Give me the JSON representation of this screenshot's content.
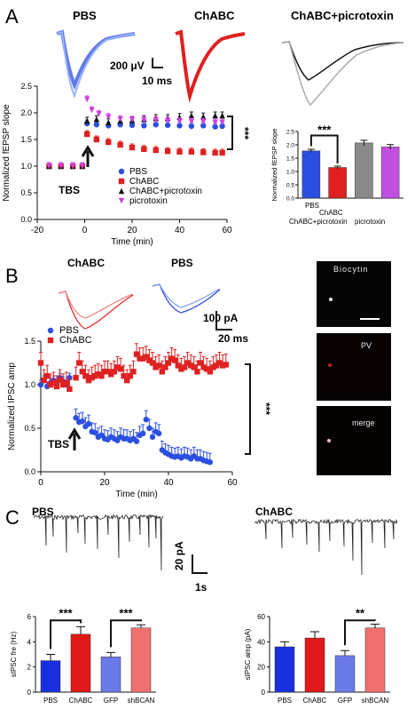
{
  "panels": {
    "A": "A",
    "B": "B",
    "C": "C"
  },
  "panelA": {
    "trace_labels": [
      "PBS",
      "ChABC",
      "ChABC+picrotoxin"
    ],
    "scale_v": "200 μV",
    "scale_t": "10 ms",
    "tbs": "TBS",
    "sig": "***",
    "colors": {
      "PBS": "#2b4fe0",
      "ChABC": "#e02020",
      "ChABC+picrotoxin": "#111111",
      "picrotoxin": "#d040e0"
    }
  },
  "panelB": {
    "trace_labels": [
      "ChABC",
      "PBS"
    ],
    "scale_a": "100 pA",
    "scale_t": "20 ms",
    "tbs": "TBS",
    "sig": "***",
    "image_labels": [
      "Biocytin",
      "PV",
      "merge"
    ]
  },
  "panelC": {
    "trace_labels": [
      "PBS",
      "ChABC"
    ],
    "scale_a": "20 pA",
    "scale_t": "1s"
  },
  "chart_data": [
    {
      "type": "line",
      "panel": "A",
      "xlabel": "Time (min)",
      "ylabel": "Normalized fEPSP slope",
      "xlim": [
        -20,
        60
      ],
      "ylim": [
        0,
        2.5
      ],
      "xticks": [
        -20,
        0,
        20,
        40,
        60
      ],
      "yticks": [
        0.0,
        0.5,
        1.0,
        1.5,
        2.0,
        2.5
      ],
      "legend": "bottom-center",
      "series": [
        {
          "name": "PBS",
          "marker": "circle",
          "color": "#2b4fe0",
          "x": [
            -15,
            -10,
            -5,
            -1,
            1,
            5,
            10,
            15,
            20,
            25,
            30,
            35,
            40,
            45,
            50,
            55,
            58
          ],
          "y": [
            1.0,
            1.0,
            1.0,
            1.0,
            1.8,
            1.78,
            1.76,
            1.78,
            1.77,
            1.76,
            1.78,
            1.77,
            1.76,
            1.75,
            1.76,
            1.74,
            1.75
          ]
        },
        {
          "name": "ChABC",
          "marker": "square",
          "color": "#e02020",
          "x": [
            -15,
            -10,
            -5,
            -1,
            1,
            5,
            10,
            15,
            20,
            25,
            30,
            35,
            40,
            45,
            50,
            55,
            58
          ],
          "y": [
            1.0,
            1.0,
            1.0,
            1.0,
            1.6,
            1.5,
            1.45,
            1.4,
            1.35,
            1.32,
            1.3,
            1.28,
            1.27,
            1.27,
            1.26,
            1.25,
            1.25
          ]
        },
        {
          "name": "ChABC+picrotoxin",
          "marker": "triangle",
          "color": "#111111",
          "x": [
            -15,
            -10,
            -5,
            -1,
            1,
            5,
            10,
            15,
            20,
            25,
            30,
            35,
            40,
            45,
            50,
            55,
            58
          ],
          "y": [
            1.0,
            1.0,
            1.0,
            1.0,
            1.85,
            1.88,
            1.82,
            1.85,
            1.86,
            1.88,
            1.9,
            1.9,
            1.92,
            1.95,
            1.93,
            1.95,
            1.95
          ]
        },
        {
          "name": "picrotoxin",
          "marker": "triangle-down",
          "color": "#d040e0",
          "x": [
            -15,
            -10,
            -5,
            -1,
            1,
            3,
            6,
            10,
            15,
            20,
            25,
            30,
            35,
            40,
            45,
            50,
            55,
            58
          ],
          "y": [
            1.0,
            1.0,
            1.0,
            1.0,
            2.25,
            2.05,
            1.98,
            1.92,
            1.88,
            1.87,
            1.86,
            1.86,
            1.85,
            1.84,
            1.83,
            1.83,
            1.82,
            1.82
          ]
        }
      ]
    },
    {
      "type": "bar",
      "panel": "A-inset",
      "ylabel": "Normalized fEPSP slope",
      "ylim": [
        0,
        2.5
      ],
      "yticks": [
        0.0,
        0.5,
        1.0,
        1.5,
        2.0,
        2.5
      ],
      "categories": [
        "PBS",
        "ChABC",
        "ChABC+picrotoxin",
        "picrotoxin"
      ],
      "values": [
        1.77,
        1.15,
        2.07,
        1.92
      ],
      "errors": [
        0.06,
        0.05,
        0.1,
        0.09
      ],
      "colors": [
        "#2b4fe0",
        "#e02020",
        "#8a8a8a",
        "#c050e0"
      ],
      "significance": [
        {
          "from": 0,
          "to": 1,
          "label": "***"
        }
      ]
    },
    {
      "type": "line",
      "panel": "B",
      "xlabel": "Time (min)",
      "ylabel": "Normalized IPSC amp",
      "xlim": [
        0,
        60
      ],
      "ylim": [
        0,
        1.5
      ],
      "xticks": [
        0,
        20,
        40,
        60
      ],
      "yticks": [
        0.0,
        0.5,
        1.0,
        1.5
      ],
      "legend": "top-left",
      "series": [
        {
          "name": "PBS",
          "marker": "circle",
          "color": "#2b4fe0",
          "x": [
            0,
            1,
            2,
            3,
            4,
            5,
            6,
            7,
            8,
            9,
            11,
            12,
            13,
            14,
            15,
            16,
            17,
            18,
            19,
            20,
            21,
            22,
            23,
            24,
            25,
            26,
            27,
            28,
            29,
            30,
            31,
            32,
            33,
            34,
            35,
            36,
            37,
            38,
            39,
            40,
            41,
            42,
            43,
            44,
            45,
            46,
            47,
            48,
            49,
            50,
            51,
            52,
            53
          ],
          "y": [
            1.0,
            1.05,
            0.98,
            1.02,
            1.05,
            1.0,
            1.08,
            1.04,
            1.0,
            1.08,
            0.62,
            0.57,
            0.58,
            0.52,
            0.55,
            0.46,
            0.45,
            0.4,
            0.42,
            0.38,
            0.37,
            0.4,
            0.38,
            0.36,
            0.4,
            0.38,
            0.38,
            0.36,
            0.38,
            0.35,
            0.42,
            0.44,
            0.6,
            0.5,
            0.4,
            0.46,
            0.44,
            0.25,
            0.22,
            0.2,
            0.18,
            0.17,
            0.18,
            0.16,
            0.18,
            0.17,
            0.15,
            0.18,
            0.15,
            0.15,
            0.13,
            0.12,
            0.11
          ]
        },
        {
          "name": "ChABC",
          "marker": "square",
          "color": "#e02020",
          "x": [
            0,
            1,
            2,
            3,
            4,
            5,
            6,
            7,
            8,
            9,
            11,
            12,
            13,
            14,
            15,
            16,
            17,
            18,
            19,
            20,
            21,
            22,
            23,
            24,
            25,
            26,
            27,
            28,
            29,
            30,
            31,
            32,
            33,
            34,
            35,
            36,
            37,
            38,
            39,
            40,
            41,
            42,
            43,
            44,
            45,
            46,
            47,
            48,
            49,
            50,
            51,
            52,
            53,
            54,
            55,
            56,
            57,
            58
          ],
          "y": [
            1.25,
            1.05,
            1.1,
            1.0,
            1.02,
            0.98,
            1.05,
            1.0,
            1.02,
            0.95,
            1.08,
            1.25,
            1.15,
            1.1,
            1.05,
            1.08,
            1.1,
            1.12,
            1.1,
            1.15,
            1.15,
            1.12,
            1.15,
            1.2,
            1.18,
            1.1,
            1.05,
            1.1,
            1.15,
            1.35,
            1.3,
            1.3,
            1.32,
            1.28,
            1.25,
            1.2,
            1.22,
            1.15,
            1.2,
            1.25,
            1.3,
            1.28,
            1.22,
            1.18,
            1.2,
            1.25,
            1.22,
            1.2,
            1.15,
            1.25,
            1.2,
            1.18,
            1.15,
            1.2,
            1.22,
            1.25,
            1.22,
            1.23
          ]
        }
      ]
    },
    {
      "type": "bar",
      "panel": "C-left",
      "ylabel": "sIPSC fre (Hz)",
      "ylim": [
        0,
        6
      ],
      "yticks": [
        0,
        2,
        4,
        6
      ],
      "categories": [
        "PBS",
        "ChABC",
        "GFP",
        "shBCAN"
      ],
      "values": [
        2.5,
        4.6,
        2.8,
        5.1
      ],
      "errors": [
        0.5,
        0.6,
        0.35,
        0.25
      ],
      "colors": [
        "#1a2fe0",
        "#e01818",
        "#6a7ae8",
        "#f07070"
      ],
      "significance": [
        {
          "from": 0,
          "to": 1,
          "label": "***"
        },
        {
          "from": 2,
          "to": 3,
          "label": "***"
        }
      ]
    },
    {
      "type": "bar",
      "panel": "C-right",
      "ylabel": "sIPSC amp (pA)",
      "ylim": [
        0,
        60
      ],
      "yticks": [
        0,
        20,
        40,
        60
      ],
      "categories": [
        "PBS",
        "ChABC",
        "GFP",
        "shBCAN"
      ],
      "values": [
        36,
        43,
        29,
        51
      ],
      "errors": [
        4,
        5,
        4,
        3
      ],
      "colors": [
        "#1a2fe0",
        "#e01818",
        "#6a7ae8",
        "#f07070"
      ],
      "significance": [
        {
          "from": 2,
          "to": 3,
          "label": "**"
        }
      ]
    }
  ]
}
